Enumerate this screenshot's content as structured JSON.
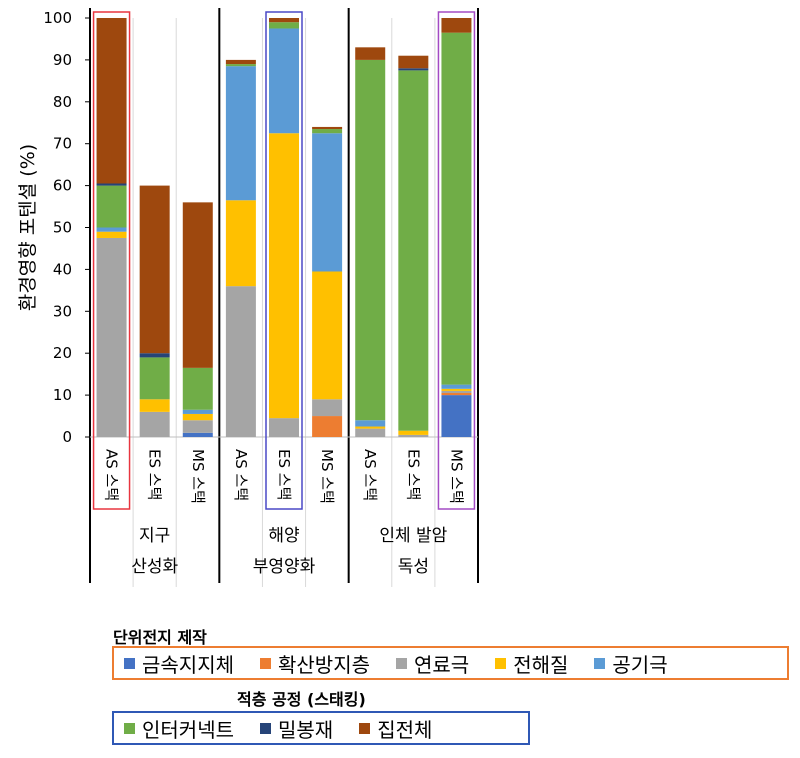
{
  "chart_data": {
    "type": "bar",
    "stacked": true,
    "ylabel": "환경영향 포텐셜 (%)",
    "ylim": [
      0,
      100
    ],
    "yticks": [
      0,
      10,
      20,
      30,
      40,
      50,
      60,
      70,
      80,
      90,
      100
    ],
    "grid": false,
    "categories": [
      "AS 스택",
      "ES 스택",
      "MS 스택",
      "AS 스택",
      "ES 스택",
      "MS 스택",
      "AS 스택",
      "ES 스택",
      "MS 스택"
    ],
    "groups": [
      {
        "lines": [
          "지구",
          "산성화"
        ]
      },
      {
        "lines": [
          "해양",
          "부영양화"
        ]
      },
      {
        "lines": [
          "인체 발암",
          "독성"
        ]
      }
    ],
    "series": [
      {
        "name": "금속지지체",
        "color": "#4472c4",
        "values": [
          0,
          0,
          1,
          0,
          0,
          0,
          0,
          0,
          10
        ]
      },
      {
        "name": "확산방지층",
        "color": "#ed7d31",
        "values": [
          0,
          0,
          0,
          0,
          0,
          5,
          0,
          0,
          0.5
        ]
      },
      {
        "name": "연료극",
        "color": "#a5a5a5",
        "values": [
          47.5,
          6,
          3,
          36,
          4.5,
          4,
          2,
          0.5,
          0.5
        ]
      },
      {
        "name": "전해질",
        "color": "#ffc000",
        "values": [
          1.5,
          3,
          1.5,
          20.5,
          68,
          30.5,
          0.5,
          1,
          0.5
        ]
      },
      {
        "name": "공기극",
        "color": "#5b9bd5",
        "values": [
          1,
          0,
          1,
          32,
          25,
          33,
          1.5,
          0,
          1
        ]
      },
      {
        "name": "인터커넥트",
        "color": "#70ad47",
        "values": [
          10,
          10,
          10,
          0.5,
          1.5,
          1,
          86,
          86,
          84
        ]
      },
      {
        "name": "밀봉재",
        "color": "#264478",
        "values": [
          0.5,
          1,
          0,
          0,
          0,
          0,
          0,
          0.5,
          0
        ]
      },
      {
        "name": "집전체",
        "color": "#9e480e",
        "values": [
          39.5,
          40,
          39.5,
          1,
          1,
          0.5,
          3,
          3,
          3.5
        ]
      }
    ],
    "highlight_boxes": [
      {
        "bar": 0,
        "color": "#e8353f"
      },
      {
        "bar": 4,
        "color": "#4a49c6"
      },
      {
        "bar": 8,
        "color": "#a34bc4"
      }
    ]
  },
  "legend": {
    "group1": {
      "title": "단위전지 제작",
      "border_color": "#ed7d31",
      "items": [
        0,
        1,
        2,
        3,
        4
      ]
    },
    "group2": {
      "title": "적층 공정 (스태킹)",
      "border_color": "#2f58b5",
      "items": [
        5,
        6,
        7
      ]
    }
  }
}
